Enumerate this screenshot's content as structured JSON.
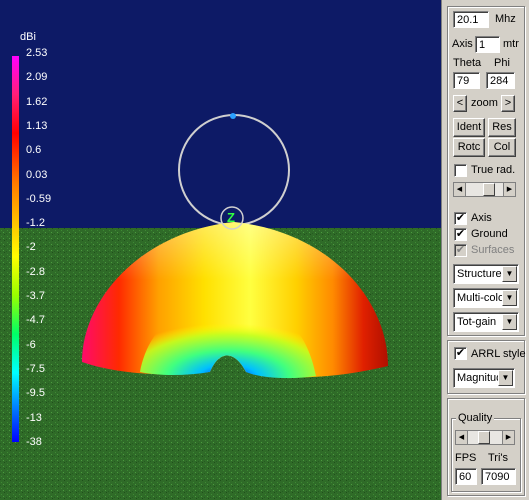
{
  "legend": {
    "title": "dBi",
    "ticks": [
      "2.53",
      "2.09",
      "1.62",
      "1.13",
      "0.6",
      "0.03",
      "-0.59",
      "-1.2",
      "-2",
      "-2.8",
      "-3.7",
      "-4.7",
      "-6",
      "-7.5",
      "-9.5",
      "-13",
      "-38"
    ]
  },
  "view": {
    "z_axis_label": "Z"
  },
  "panel": {
    "frequency": "20.1",
    "frequency_unit": "Mhz",
    "axis_label": "Axis",
    "axis_value": "1",
    "axis_unit": "mtr",
    "theta_label": "Theta",
    "phi_label": "Phi",
    "theta_value": "79",
    "phi_value": "284",
    "zoom_label": "zoom",
    "zoom_prev": "<",
    "zoom_next": ">",
    "ident_label": "Ident",
    "res_label": "Res",
    "rotc_label": "Rotc",
    "col_label": "Col",
    "true_rad_label": "True rad.",
    "true_rad_checked": false,
    "axis_check_label": "Axis",
    "axis_checked": true,
    "ground_label": "Ground",
    "ground_checked": true,
    "surfaces_label": "Surfaces",
    "surfaces_checked": true,
    "dropdown1": "Structure",
    "dropdown2": "Multi-colo",
    "dropdown3": "Tot-gain",
    "arrl_label": "ARRL style",
    "arrl_checked": true,
    "dropdown4": "Magnitud",
    "quality_label": "Quality",
    "fps_label": "FPS",
    "tris_label": "Tri's",
    "fps_value": "60",
    "tris_value": "7090"
  },
  "colors": {
    "sky": "#0d1a66",
    "ground": "#2f6b28",
    "colorbar_top": "#ff00ff",
    "colorbar_bottom": "#0000ff"
  }
}
